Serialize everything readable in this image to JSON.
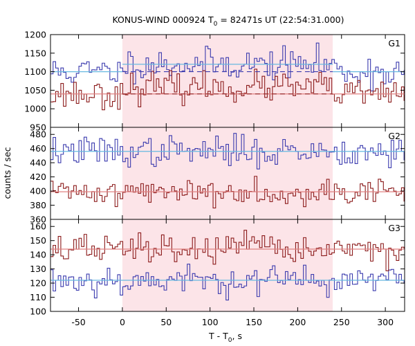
{
  "chart_data": {
    "type": "line",
    "title_main": "KONUS-WIND 000924 T",
    "title_sub": "0",
    "title_rest": " = 82471s UT (22:54:31.000)",
    "xlabel_main": "T - T",
    "xlabel_sub": "0",
    "xlabel_rest": ", s",
    "ylabel": "counts / sec",
    "xlim": [
      -82,
      322
    ],
    "xticks": [
      "-50",
      "0",
      "50",
      "100",
      "150",
      "200",
      "250",
      "300"
    ],
    "xtick_values": [
      -50,
      0,
      50,
      100,
      150,
      200,
      250,
      300
    ],
    "highlight_interval": [
      0,
      240
    ],
    "colors": {
      "blue": "#3a3aae",
      "red": "#8b1a1a",
      "bg_blue": "#66b8e0",
      "bg_red": "#e08080",
      "highlight": "#fce4e8"
    },
    "panels": [
      {
        "name": "G1",
        "ylim": [
          950,
          1200
        ],
        "yticks": [
          "950",
          "1000",
          "1050",
          "1100",
          "1150",
          "1200"
        ],
        "ytick_values": [
          950,
          1000,
          1050,
          1100,
          1150,
          1200
        ],
        "series": [
          {
            "color": "blue",
            "background": 1100,
            "source_level": 1120,
            "source_from": 0,
            "source_to": 240,
            "noise": 28,
            "seed": 11
          },
          {
            "color": "red",
            "background": 1040,
            "source_level": 1058,
            "source_from": 0,
            "source_to": 240,
            "noise": 26,
            "seed": 23
          }
        ],
        "dashed_levels": [
          {
            "color": "blue",
            "value": 1100,
            "from": 0,
            "to": 240
          },
          {
            "color": "red",
            "value": 1040,
            "from": 0,
            "to": 240
          }
        ],
        "solid_levels": [
          {
            "color": "blue",
            "value": 1100,
            "from": -82,
            "to": 0
          },
          {
            "color": "blue",
            "value": 1120,
            "from": 0,
            "to": 240
          },
          {
            "color": "blue",
            "value": 1100,
            "from": 240,
            "to": 322
          },
          {
            "color": "red",
            "value": 1040,
            "from": -82,
            "to": 322
          }
        ]
      },
      {
        "name": "G2",
        "ylim": [
          360,
          490
        ],
        "yticks": [
          "360",
          "380",
          "400",
          "420",
          "440",
          "460",
          "480"
        ],
        "ytick_values": [
          360,
          380,
          400,
          420,
          440,
          460,
          480
        ],
        "series": [
          {
            "color": "blue",
            "background": 456,
            "source_level": 456,
            "source_from": 0,
            "source_to": 240,
            "noise": 14,
            "seed": 37
          },
          {
            "color": "red",
            "background": 399,
            "source_level": 399,
            "source_from": 0,
            "source_to": 240,
            "noise": 12,
            "seed": 41
          }
        ],
        "dashed_levels": [],
        "solid_levels": [
          {
            "color": "blue",
            "value": 456,
            "from": -82,
            "to": 322
          },
          {
            "color": "red",
            "value": 399,
            "from": -82,
            "to": 322
          }
        ]
      },
      {
        "name": "G3",
        "ylim": [
          100,
          165
        ],
        "yticks": [
          "100",
          "110",
          "120",
          "130",
          "140",
          "150",
          "160"
        ],
        "ytick_values": [
          100,
          110,
          120,
          130,
          140,
          150,
          160
        ],
        "series": [
          {
            "color": "blue",
            "background": 122,
            "source_level": 122,
            "source_from": 0,
            "source_to": 240,
            "noise": 7,
            "seed": 53
          },
          {
            "color": "red",
            "background": 144,
            "source_level": 144,
            "source_from": 0,
            "source_to": 240,
            "noise": 7,
            "seed": 67
          }
        ],
        "dashed_levels": [],
        "solid_levels": [
          {
            "color": "blue",
            "value": 122,
            "from": -82,
            "to": 322
          },
          {
            "color": "red",
            "value": 144,
            "from": -82,
            "to": 322
          }
        ]
      }
    ],
    "bin_width": 2.944
  }
}
